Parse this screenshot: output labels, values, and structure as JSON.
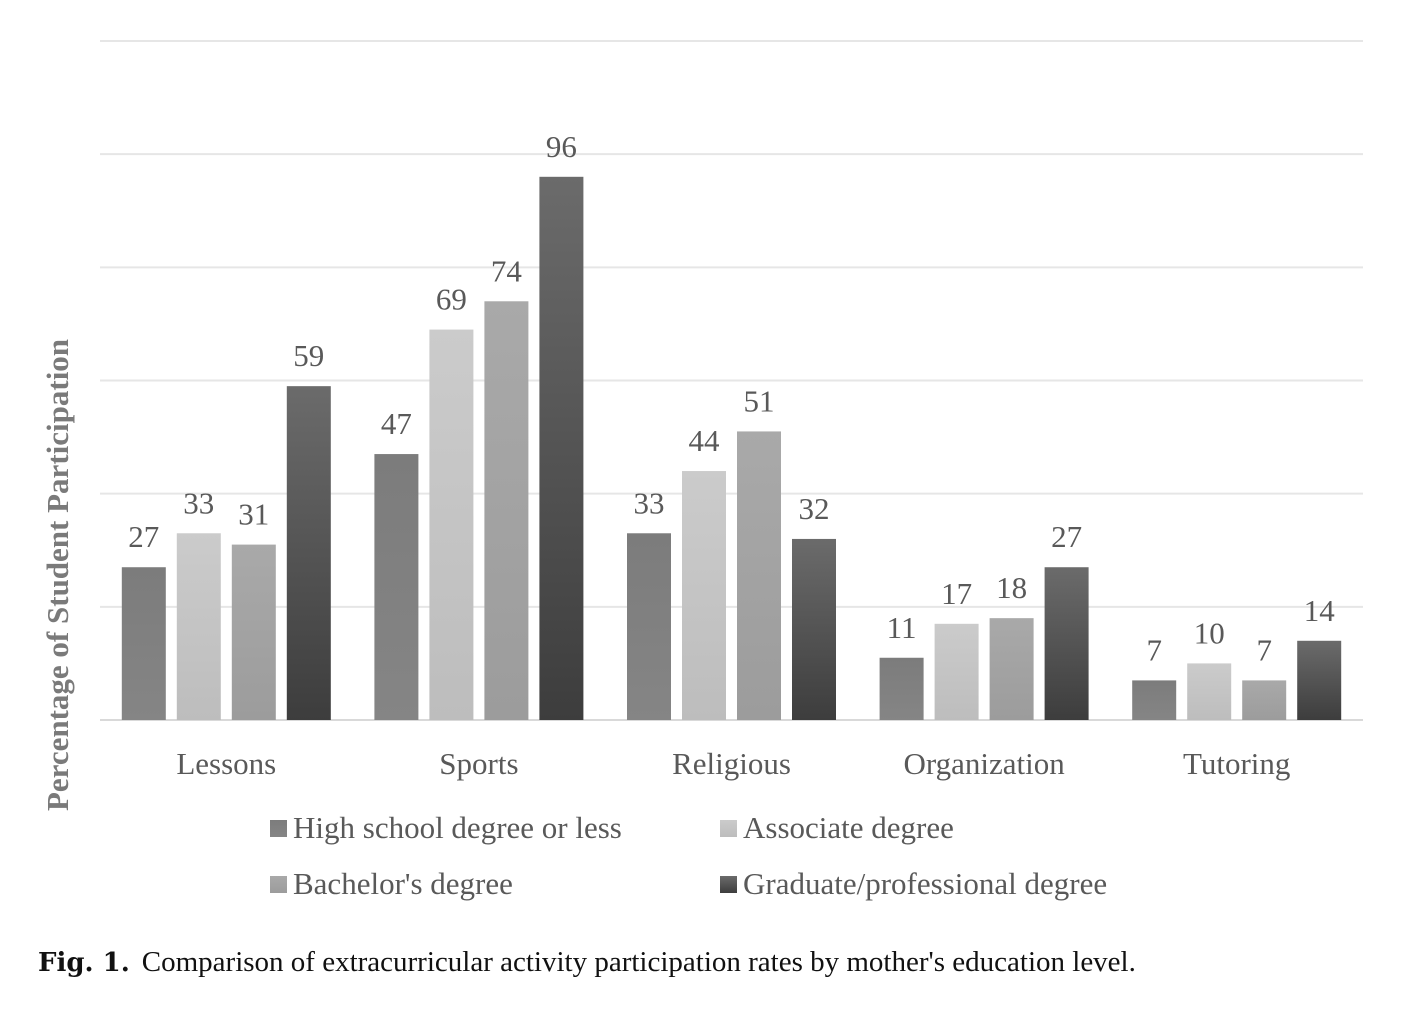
{
  "chart_data": {
    "type": "bar",
    "categories": [
      "Lessons",
      "Sports",
      "Religious",
      "Organization",
      "Tutoring"
    ],
    "series": [
      {
        "name": "High school degree or less",
        "values": [
          27,
          47,
          33,
          11,
          7
        ],
        "color_top": "#7c7c7c",
        "color_bottom": "#858585"
      },
      {
        "name": "Associate degree",
        "values": [
          33,
          69,
          44,
          17,
          10
        ],
        "color_top": "#cbcbcb",
        "color_bottom": "#bdbdbd"
      },
      {
        "name": "Bachelor's degree",
        "values": [
          31,
          74,
          51,
          18,
          7
        ],
        "color_top": "#a9a9a9",
        "color_bottom": "#9c9c9c"
      },
      {
        "name": "Graduate/professional degree",
        "values": [
          59,
          96,
          32,
          27,
          14
        ],
        "color_top": "#6b6b6b",
        "color_bottom": "#3d3d3d"
      }
    ],
    "title": "",
    "xlabel": "",
    "ylabel": "Percentage of Student Participation",
    "ylim": [
      0,
      120
    ],
    "grid": true,
    "ytick_labels_shown": false,
    "legend_position": "bottom"
  },
  "caption": {
    "label": "Fig. 1.",
    "text": "Comparison of extracurricular activity participation rates by mother's education level."
  }
}
